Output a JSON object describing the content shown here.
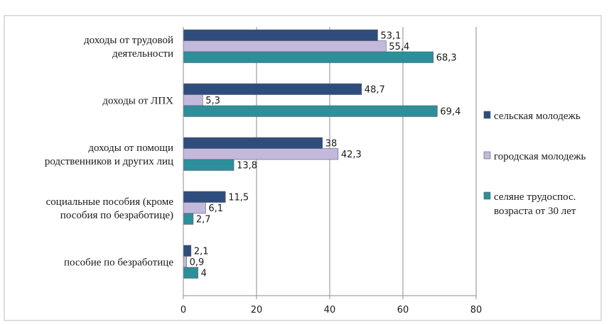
{
  "chart_data": {
    "type": "bar",
    "orientation": "horizontal",
    "categories": [
      [
        "доходы от трудовой",
        "деятельности"
      ],
      [
        "доходы от ЛПХ"
      ],
      [
        "доходы от помощи",
        "родственников и других лиц"
      ],
      [
        "социальные пособия (кроме",
        "пособия по безработице)"
      ],
      [
        "пособие по безработице"
      ]
    ],
    "series": [
      {
        "name": [
          "сельская молодежь"
        ],
        "color": "#2e4d7d",
        "values": [
          53.1,
          48.7,
          38,
          11.5,
          2.1
        ],
        "labels": [
          "53,1",
          "48,7",
          "38",
          "11,5",
          "2,1"
        ]
      },
      {
        "name": [
          "городская молодежь"
        ],
        "color": "#c3b9dd",
        "values": [
          55.4,
          5.3,
          42.3,
          6.1,
          0.9
        ],
        "labels": [
          "55,4",
          "5,3",
          "42,3",
          "6,1",
          "0,9"
        ]
      },
      {
        "name": [
          "селяне трудоспос.",
          "возраста от 30 лет"
        ],
        "color": "#2c8f9a",
        "values": [
          68.3,
          69.4,
          13.8,
          2.7,
          4
        ],
        "labels": [
          "68,3",
          "69,4",
          "13,8",
          "2,7",
          "4"
        ]
      }
    ],
    "xlim": [
      0,
      80
    ],
    "xticks": [
      "0",
      "20",
      "40",
      "60",
      "80"
    ],
    "grid": true,
    "legend": "right"
  }
}
